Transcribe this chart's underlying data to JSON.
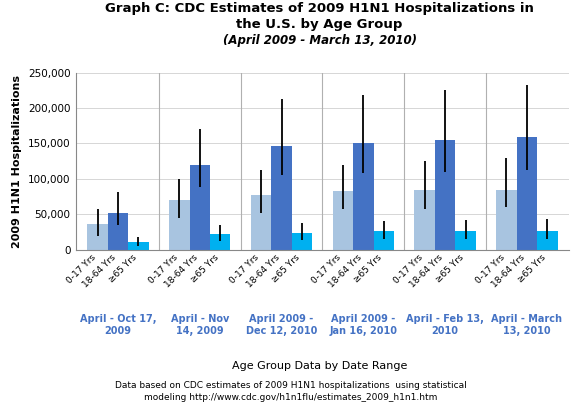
{
  "title_line1": "Graph C: CDC Estimates of 2009 H1N1 Hospitalizations in",
  "title_line2": "the U.S. by Age Group",
  "title_line3": "(April 2009 - March 13, 2010)",
  "ylabel": "2009 H1N1 Hospitalizations",
  "xlabel": "Age Group Data by Date Range",
  "footnote1": "Data based on CDC estimates of 2009 H1N1 hospitalizations  using statistical",
  "footnote2": "modeling http://www.cdc.gov/h1n1flu/estimates_2009_h1n1.htm",
  "date_ranges": [
    "April - Oct 17,\n2009",
    "April - Nov\n14, 2009",
    "April 2009 -\nDec 12, 2010",
    "April 2009 -\nJan 16, 2010",
    "April - Feb 13,\n2010",
    "April - March\n13, 2010"
  ],
  "age_groups": [
    "0-17 Yrs",
    "18-64 Yrs",
    "≥65 Yrs"
  ],
  "age_group_colors": [
    "#a8c4e0",
    "#4472c4",
    "#00b0f0"
  ],
  "bar_values": [
    [
      36000,
      52000,
      11000
    ],
    [
      70000,
      120000,
      22000
    ],
    [
      77000,
      147000,
      24000
    ],
    [
      83000,
      151000,
      26000
    ],
    [
      84000,
      155000,
      27000
    ],
    [
      85000,
      159000,
      27000
    ]
  ],
  "error_low": [
    [
      20000,
      35000,
      6000
    ],
    [
      45000,
      88000,
      12000
    ],
    [
      52000,
      105000,
      14000
    ],
    [
      57000,
      108000,
      15000
    ],
    [
      58000,
      110000,
      16000
    ],
    [
      60000,
      113000,
      16000
    ]
  ],
  "error_high": [
    [
      57000,
      82000,
      18000
    ],
    [
      100000,
      170000,
      35000
    ],
    [
      112000,
      212000,
      38000
    ],
    [
      120000,
      218000,
      40000
    ],
    [
      125000,
      225000,
      42000
    ],
    [
      130000,
      232000,
      43000
    ]
  ],
  "ylim": [
    0,
    250000
  ],
  "yticks": [
    0,
    50000,
    100000,
    150000,
    200000,
    250000
  ],
  "ytick_labels": [
    "0",
    "50,000",
    "100,000",
    "150,000",
    "200,000",
    "250,000"
  ],
  "background_color": "#ffffff",
  "grid_color": "#d0d0d0",
  "group_separator_color": "#b0b0b0"
}
